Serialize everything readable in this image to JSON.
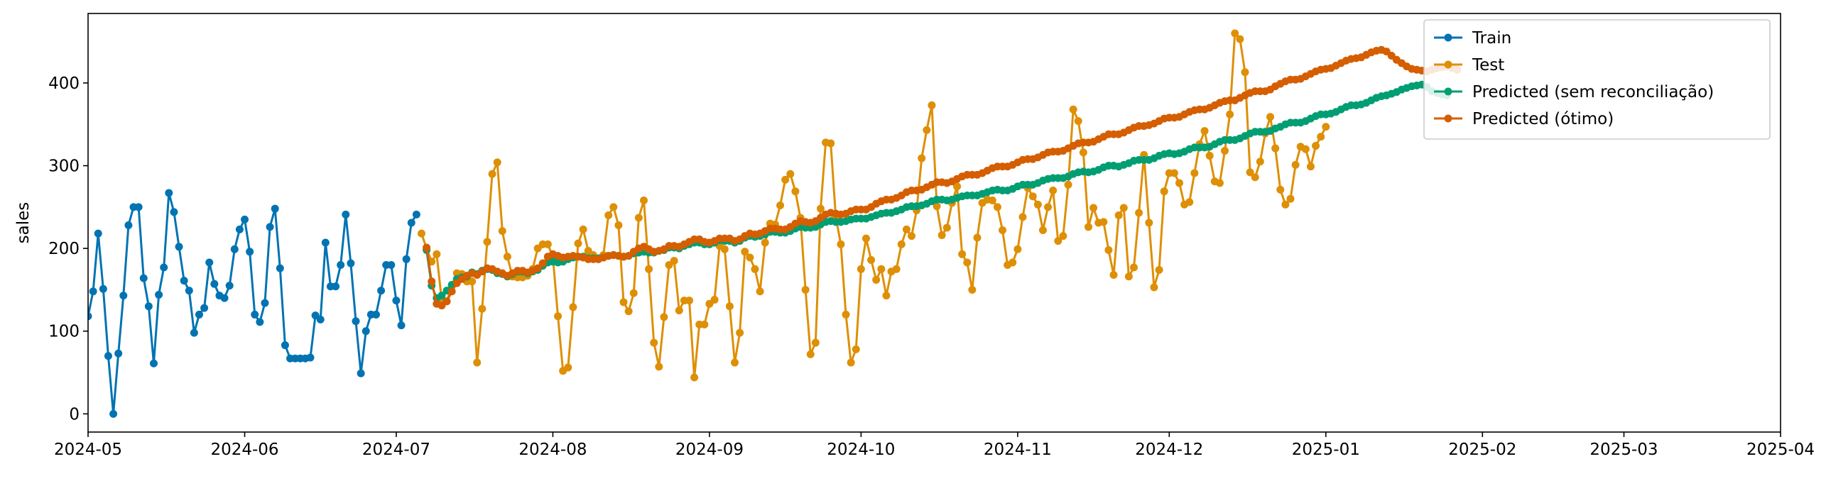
{
  "chart_data": {
    "type": "line",
    "title": "",
    "xlabel": "",
    "ylabel": "sales",
    "xlim": [
      "2024-05-01",
      "2025-04-01"
    ],
    "ylim": [
      -22,
      484
    ],
    "x_ticks": [
      "2024-05",
      "2024-06",
      "2024-07",
      "2024-08",
      "2024-09",
      "2024-10",
      "2024-11",
      "2024-12",
      "2025-01",
      "2025-02",
      "2025-03",
      "2025-04"
    ],
    "y_ticks": [
      0,
      100,
      200,
      300,
      400
    ],
    "grid": false,
    "legend_position": "top-right",
    "series": [
      {
        "name": "Train",
        "color": "#0173b2",
        "marker": "circle",
        "start_date": "2024-05-01",
        "values": [
          118,
          148,
          218,
          151,
          70,
          0,
          73,
          143,
          228,
          250,
          250,
          164,
          130,
          61,
          144,
          177,
          267,
          244,
          202,
          161,
          149,
          98,
          120,
          128,
          183,
          157,
          143,
          140,
          155,
          199,
          223,
          235,
          196,
          120,
          111,
          134,
          226,
          248,
          176,
          83,
          67,
          67,
          67,
          67,
          68,
          119,
          114,
          207,
          154,
          154,
          180,
          241,
          182,
          112,
          49,
          100,
          120,
          120,
          149,
          180,
          180,
          137,
          107,
          187,
          231,
          241
        ]
      },
      {
        "name": "Test",
        "color": "#de8f05",
        "marker": "circle",
        "start_date": "2024-07-06",
        "values": [
          218,
          200,
          184,
          193,
          137,
          136,
          155,
          170,
          169,
          160,
          160,
          62,
          127,
          208,
          290,
          304,
          221,
          190,
          166,
          165,
          165,
          167,
          175,
          200,
          205,
          205,
          190,
          118,
          52,
          56,
          129,
          206,
          223,
          197,
          192,
          187,
          192,
          240,
          250,
          228,
          135,
          124,
          146,
          237,
          258,
          175,
          86,
          57,
          117,
          180,
          185,
          125,
          137,
          137,
          44,
          108,
          108,
          133,
          138,
          203,
          199,
          130,
          62,
          98,
          196,
          189,
          175,
          148,
          207,
          230,
          229,
          252,
          283,
          290,
          269,
          237,
          150,
          72,
          86,
          248,
          328,
          327,
          238,
          205,
          120,
          62,
          78,
          175,
          212,
          186,
          162,
          175,
          143,
          172,
          175,
          205,
          223,
          215,
          246,
          309,
          343,
          373,
          251,
          216,
          225,
          255,
          275,
          193,
          183,
          150,
          213,
          255,
          259,
          258,
          250,
          222,
          180,
          183,
          199,
          238,
          273,
          263,
          253,
          222,
          250,
          270,
          209,
          215,
          277,
          368,
          354,
          316,
          226,
          249,
          231,
          232,
          198,
          168,
          240,
          249,
          166,
          177,
          243,
          313,
          231,
          153,
          174,
          269,
          291,
          291,
          279,
          253,
          256,
          291,
          326,
          342,
          312,
          281,
          279,
          318,
          362,
          460,
          453,
          413,
          292,
          286,
          305,
          339,
          359,
          321,
          271,
          253,
          260,
          301,
          323,
          320,
          299,
          324,
          335,
          347
        ]
      },
      {
        "name": "Predicted (sem reconciliação)",
        "color": "#029e73",
        "marker": "circle",
        "start_date": "2024-07-07",
        "values": [
          198,
          155,
          140,
          143,
          149,
          156,
          163,
          165,
          166,
          171,
          169,
          173,
          175,
          174,
          170,
          169,
          166,
          169,
          172,
          172,
          170,
          172,
          174,
          179,
          183,
          184,
          183,
          184,
          187,
          189,
          190,
          190,
          188,
          188,
          188,
          189,
          191,
          192,
          191,
          190,
          191,
          194,
          195,
          196,
          195,
          195,
          197,
          198,
          201,
          201,
          200,
          203,
          205,
          207,
          207,
          205,
          205,
          207,
          210,
          209,
          209,
          207,
          209,
          213,
          215,
          214,
          215,
          217,
          220,
          220,
          219,
          219,
          221,
          224,
          226,
          225,
          225,
          226,
          229,
          232,
          233,
          232,
          232,
          233,
          235,
          236,
          236,
          236,
          238,
          240,
          242,
          243,
          243,
          245,
          247,
          250,
          251,
          251,
          252,
          254,
          257,
          259,
          259,
          258,
          259,
          261,
          263,
          264,
          264,
          264,
          266,
          268,
          270,
          271,
          270,
          270,
          272,
          275,
          277,
          277,
          277,
          279,
          282,
          284,
          285,
          285,
          285,
          287,
          290,
          292,
          293,
          292,
          293,
          295,
          298,
          300,
          300,
          299,
          301,
          303,
          306,
          307,
          307,
          307,
          309,
          312,
          314,
          315,
          314,
          315,
          317,
          320,
          322,
          322,
          322,
          323,
          326,
          329,
          331,
          331,
          331,
          333,
          336,
          339,
          341,
          341,
          341,
          342,
          345,
          347,
          350,
          352,
          352,
          352,
          354,
          357,
          360,
          362,
          362,
          363,
          365,
          368,
          371,
          373,
          373,
          374,
          376,
          379,
          382,
          384,
          385,
          387,
          389,
          392,
          394,
          396,
          397,
          398,
          395,
          390,
          388,
          386,
          385
        ]
      },
      {
        "name": "Predicted (ótimo)",
        "color": "#d55e00",
        "marker": "circle",
        "start_date": "2024-07-07",
        "values": [
          201,
          160,
          133,
          131,
          136,
          148,
          158,
          163,
          167,
          170,
          168,
          172,
          176,
          175,
          172,
          170,
          167,
          170,
          173,
          173,
          171,
          173,
          176,
          182,
          190,
          193,
          191,
          189,
          190,
          191,
          190,
          189,
          187,
          187,
          187,
          189,
          191,
          192,
          191,
          190,
          191,
          196,
          200,
          202,
          199,
          196,
          197,
          199,
          203,
          203,
          202,
          205,
          208,
          211,
          211,
          208,
          207,
          209,
          212,
          212,
          212,
          209,
          211,
          215,
          218,
          217,
          218,
          221,
          224,
          224,
          223,
          223,
          226,
          230,
          233,
          232,
          231,
          233,
          237,
          241,
          243,
          242,
          241,
          242,
          245,
          247,
          247,
          247,
          250,
          254,
          257,
          259,
          259,
          261,
          264,
          268,
          270,
          270,
          271,
          274,
          277,
          280,
          280,
          279,
          281,
          284,
          287,
          289,
          289,
          289,
          291,
          294,
          297,
          299,
          299,
          299,
          301,
          304,
          307,
          308,
          308,
          310,
          313,
          316,
          317,
          317,
          318,
          321,
          324,
          327,
          328,
          328,
          329,
          332,
          335,
          338,
          338,
          338,
          340,
          343,
          346,
          348,
          348,
          349,
          351,
          354,
          357,
          358,
          358,
          359,
          362,
          365,
          367,
          368,
          368,
          370,
          373,
          376,
          378,
          379,
          379,
          382,
          385,
          388,
          390,
          390,
          390,
          392,
          396,
          399,
          402,
          404,
          404,
          405,
          408,
          411,
          414,
          416,
          417,
          418,
          421,
          424,
          427,
          429,
          430,
          431,
          434,
          437,
          439,
          440,
          438,
          433,
          428,
          424,
          420,
          417,
          416,
          415,
          414,
          416,
          418,
          419,
          420,
          418,
          416
        ]
      }
    ]
  }
}
